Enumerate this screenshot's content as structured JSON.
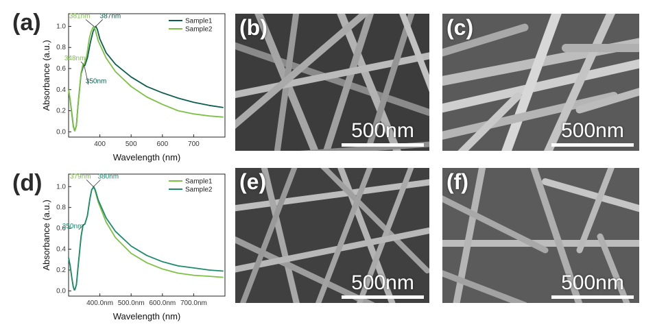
{
  "panels": {
    "a": "(a)",
    "b": "(b)",
    "c": "(c)",
    "d": "(d)",
    "e": "(e)",
    "f": "(f)"
  },
  "scale_bar": "500nm",
  "chart_data": [
    {
      "id": "a",
      "type": "line",
      "xlabel": "Wavelength (nm)",
      "ylabel": "Absorbance (a.u.)",
      "xlim": [
        300,
        800
      ],
      "ylim": [
        -0.05,
        1.12
      ],
      "xticks": [
        400,
        500,
        600,
        700
      ],
      "xtick_labels": [
        "400",
        "500",
        "600",
        "700"
      ],
      "yticks": [
        0.0,
        0.2,
        0.4,
        0.6,
        0.8,
        1.0
      ],
      "ytick_labels": [
        "0.0",
        "0.2",
        "0.4",
        "0.6",
        "0.8",
        "1.0"
      ],
      "legend": "top-right",
      "series": [
        {
          "name": "Sample1",
          "color": "#0b5e4f",
          "x": [
            300,
            305,
            310,
            315,
            318,
            320,
            325,
            330,
            340,
            348,
            352,
            360,
            370,
            378,
            384,
            387,
            392,
            400,
            420,
            450,
            500,
            550,
            600,
            650,
            700,
            750,
            795
          ],
          "y": [
            0.4,
            0.3,
            0.18,
            0.06,
            0.02,
            0.01,
            0.06,
            0.25,
            0.55,
            0.63,
            0.63,
            0.7,
            0.85,
            0.95,
            0.99,
            1.0,
            0.97,
            0.88,
            0.75,
            0.64,
            0.52,
            0.43,
            0.37,
            0.32,
            0.28,
            0.25,
            0.23
          ]
        },
        {
          "name": "Sample2",
          "color": "#7cc242",
          "x": [
            300,
            305,
            310,
            315,
            318,
            320,
            325,
            330,
            340,
            346,
            350,
            358,
            366,
            372,
            378,
            381,
            386,
            395,
            420,
            450,
            500,
            550,
            600,
            650,
            700,
            750,
            795
          ],
          "y": [
            0.4,
            0.3,
            0.17,
            0.05,
            0.02,
            0.01,
            0.06,
            0.25,
            0.56,
            0.64,
            0.64,
            0.72,
            0.88,
            0.95,
            0.99,
            1.0,
            0.96,
            0.86,
            0.7,
            0.57,
            0.43,
            0.33,
            0.26,
            0.2,
            0.17,
            0.15,
            0.14
          ]
        }
      ],
      "annotations": [
        {
          "text": "381nm",
          "x": 381,
          "y": 1.0,
          "color": "#7cc242"
        },
        {
          "text": "387nm",
          "x": 387,
          "y": 1.0,
          "color": "#0b5e4f"
        },
        {
          "text": "348nm",
          "x": 348,
          "y": 0.64,
          "color": "#7cc242"
        },
        {
          "text": "350nm",
          "x": 350,
          "y": 0.63,
          "color": "#0b5e4f"
        }
      ]
    },
    {
      "id": "d",
      "type": "line",
      "xlabel": "Wavelength (nm)",
      "ylabel": "Absorbance (a.u.)",
      "xlim": [
        300,
        800
      ],
      "ylim": [
        -0.05,
        1.12
      ],
      "xticks": [
        400,
        500,
        600,
        700
      ],
      "xtick_labels": [
        "400.0nm",
        "500.0nm",
        "600.0nm",
        "700.0nm"
      ],
      "yticks": [
        0.0,
        0.2,
        0.4,
        0.6,
        0.8,
        1.0
      ],
      "ytick_labels": [
        "0.0",
        "0.2",
        "0.4",
        "0.6",
        "0.8",
        "1.0"
      ],
      "legend": "top-right",
      "series": [
        {
          "name": "Sample1",
          "color": "#7cc242",
          "x": [
            300,
            305,
            310,
            315,
            318,
            320,
            325,
            330,
            340,
            346,
            352,
            360,
            368,
            374,
            378,
            379,
            384,
            395,
            420,
            450,
            500,
            550,
            600,
            650,
            700,
            750,
            795
          ],
          "y": [
            0.32,
            0.24,
            0.13,
            0.04,
            0.01,
            0.01,
            0.06,
            0.22,
            0.52,
            0.63,
            0.64,
            0.72,
            0.88,
            0.97,
            0.99,
            1.0,
            0.97,
            0.85,
            0.66,
            0.51,
            0.36,
            0.27,
            0.21,
            0.17,
            0.15,
            0.14,
            0.13
          ]
        },
        {
          "name": "Sample2",
          "color": "#1b8a6b",
          "x": [
            300,
            305,
            310,
            315,
            318,
            320,
            325,
            330,
            340,
            346,
            352,
            360,
            368,
            374,
            379,
            380,
            385,
            395,
            420,
            450,
            500,
            550,
            600,
            650,
            700,
            750,
            795
          ],
          "y": [
            0.32,
            0.24,
            0.13,
            0.04,
            0.01,
            0.01,
            0.06,
            0.22,
            0.52,
            0.63,
            0.64,
            0.72,
            0.88,
            0.97,
            0.99,
            1.0,
            0.97,
            0.87,
            0.7,
            0.57,
            0.43,
            0.34,
            0.28,
            0.24,
            0.22,
            0.2,
            0.19
          ]
        }
      ],
      "annotations": [
        {
          "text": "379nm",
          "x": 379,
          "y": 1.0,
          "color": "#7cc242"
        },
        {
          "text": "380nm",
          "x": 380,
          "y": 1.0,
          "color": "#1b8a6b"
        },
        {
          "text": "350nm",
          "x": 350,
          "y": 0.64,
          "color": "#1b8a6b"
        }
      ]
    }
  ]
}
